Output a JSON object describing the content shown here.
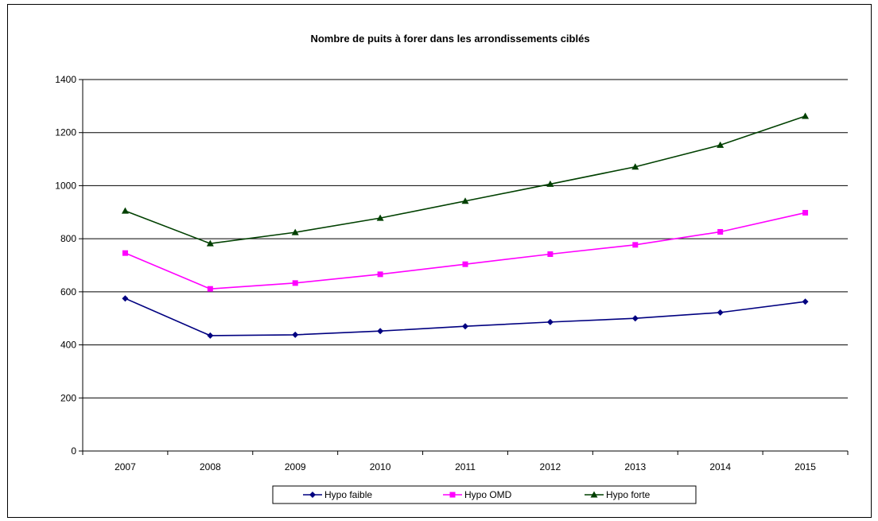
{
  "chart_data": {
    "type": "line",
    "title": "Nombre de puits à forer dans les arrondissements ciblés",
    "xlabel": "",
    "ylabel": "",
    "categories": [
      "2007",
      "2008",
      "2009",
      "2010",
      "2011",
      "2012",
      "2013",
      "2014",
      "2015"
    ],
    "ylim": [
      0,
      1400
    ],
    "yticks": [
      "0",
      "200",
      "400",
      "600",
      "800",
      "1000",
      "1200",
      "1400"
    ],
    "grid": true,
    "legend_position": "bottom",
    "series": [
      {
        "name": "Hypo faible",
        "color": "#000080",
        "marker": "diamond",
        "values": [
          575,
          435,
          438,
          452,
          470,
          486,
          500,
          522,
          563
        ]
      },
      {
        "name": "Hypo OMD",
        "color": "#ff00ff",
        "marker": "square",
        "values": [
          746,
          611,
          633,
          666,
          704,
          742,
          777,
          826,
          898
        ]
      },
      {
        "name": "Hypo forte",
        "color": "#004000",
        "marker": "triangle",
        "values": [
          905,
          782,
          824,
          878,
          942,
          1006,
          1071,
          1153,
          1262
        ]
      }
    ]
  }
}
